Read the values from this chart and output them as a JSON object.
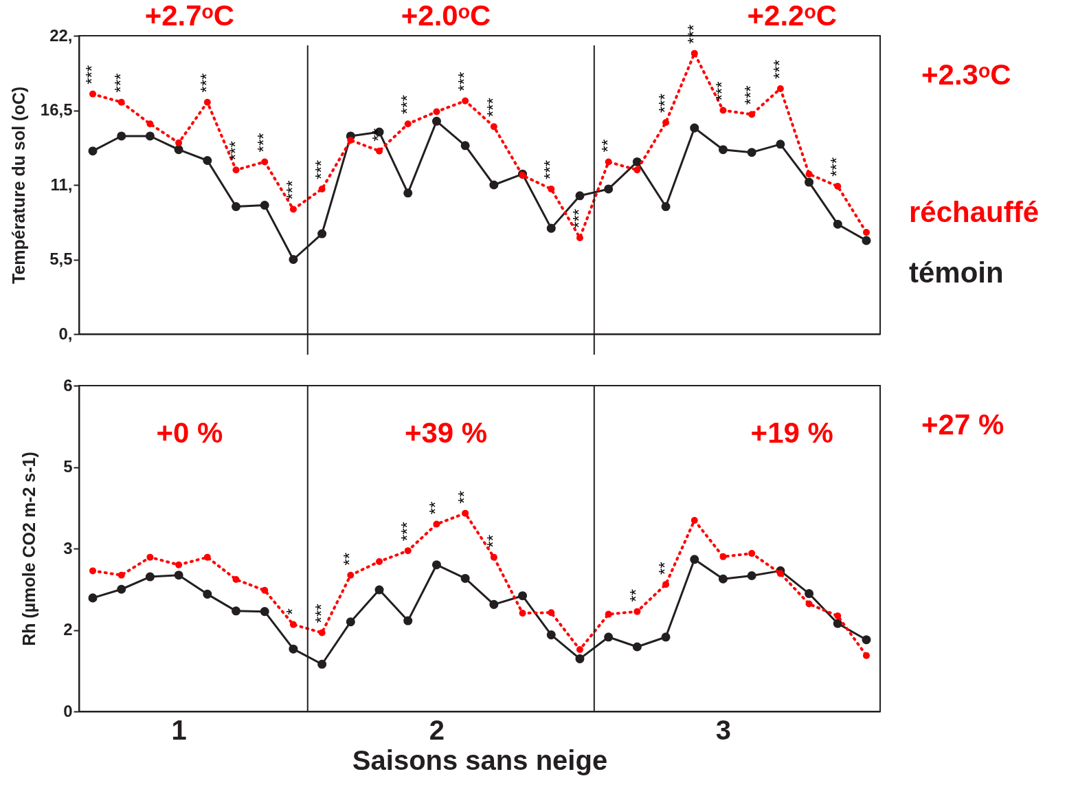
{
  "chart_data": [
    {
      "type": "line",
      "ylabel": "Température du sol (oC)",
      "categories": [
        null,
        null,
        null,
        null,
        null,
        null,
        null,
        null,
        null,
        null,
        null,
        null,
        null,
        null,
        null,
        null,
        null,
        null,
        null,
        null,
        null,
        null,
        null,
        null,
        null,
        null,
        null,
        null
      ],
      "ylim": [
        0,
        22
      ],
      "yticks": [
        {
          "value": 0,
          "label": "0,"
        },
        {
          "value": 5.5,
          "label": "5,5"
        },
        {
          "value": 11,
          "label": "11,"
        },
        {
          "value": 16.5,
          "label": "16,5"
        },
        {
          "value": 22,
          "label": "22,"
        }
      ],
      "tick_labels": "y",
      "legend": "right",
      "marker": "circle",
      "series": [
        {
          "name": "réchauffé",
          "color": "#ff0000",
          "line_style": "dotted",
          "values": [
            17.7,
            17.1,
            15.5,
            14.1,
            17.1,
            12.1,
            12.7,
            9.2,
            10.7,
            14.3,
            13.5,
            15.5,
            16.4,
            17.2,
            15.3,
            11.7,
            10.7,
            7.1,
            12.7,
            12.1,
            15.6,
            20.7,
            16.5,
            16.2,
            18.1,
            11.8,
            10.9,
            7.5
          ],
          "value_labels": [
            "***",
            "***",
            null,
            null,
            "***",
            "***",
            "***",
            "***",
            "***",
            null,
            "**",
            "***",
            null,
            "***",
            "***",
            null,
            "***",
            "***",
            "**",
            null,
            "***",
            "***",
            "***",
            "***",
            "***",
            null,
            "***",
            null
          ]
        },
        {
          "name": "témoin",
          "color": "#231f20",
          "line_style": "solid",
          "values": [
            13.5,
            14.6,
            14.6,
            13.6,
            12.8,
            9.4,
            9.5,
            5.5,
            7.4,
            14.6,
            14.9,
            10.4,
            15.7,
            13.9,
            11.0,
            11.8,
            7.8,
            10.2,
            10.7,
            12.7,
            9.4,
            15.2,
            13.6,
            13.4,
            14.0,
            11.2,
            8.1,
            6.9
          ]
        }
      ],
      "annotations": [
        "+2.7ᵒC",
        "+2.0ᵒC",
        "+2.2ᵒC",
        "+2.3ᵒC"
      ]
    },
    {
      "type": "line",
      "xlabel": "Saisons sans neige",
      "ylabel": "Rh (µmole CO2 m-2 s-1)",
      "categories": [
        null,
        null,
        null,
        "1",
        null,
        null,
        null,
        null,
        null,
        null,
        null,
        null,
        "2",
        null,
        null,
        null,
        null,
        null,
        null,
        null,
        null,
        null,
        "3",
        null,
        null,
        null,
        null,
        null
      ],
      "ylim": [
        0,
        6
      ],
      "yticks": [
        0,
        {
          "value": 1.5,
          "label": "2"
        },
        3,
        {
          "value": 4.5,
          "label": "5"
        },
        6
      ],
      "marker": "circle",
      "series": [
        {
          "color": "#ff0000",
          "line_style": "dotted",
          "values": [
            2.59,
            2.51,
            2.84,
            2.7,
            2.84,
            2.43,
            2.23,
            1.6,
            1.45,
            2.51,
            2.76,
            2.96,
            3.45,
            3.65,
            2.84,
            1.81,
            1.82,
            1.14,
            1.79,
            1.84,
            2.34,
            3.52,
            2.85,
            2.91,
            2.54,
            1.98,
            1.76,
            1.03
          ],
          "value_labels": [
            null,
            null,
            null,
            null,
            null,
            null,
            null,
            "*",
            "***",
            "**",
            null,
            "***",
            "**",
            "**",
            "**",
            null,
            null,
            null,
            null,
            "**",
            "**",
            null,
            null,
            null,
            null,
            null,
            null,
            null
          ]
        },
        {
          "color": "#231f20",
          "line_style": "solid",
          "values": [
            2.09,
            2.25,
            2.48,
            2.51,
            2.16,
            1.85,
            1.84,
            1.15,
            0.87,
            1.65,
            2.24,
            1.67,
            2.7,
            2.45,
            1.97,
            2.13,
            1.41,
            0.97,
            1.37,
            1.19,
            1.37,
            2.8,
            2.44,
            2.5,
            2.59,
            2.17,
            1.62,
            1.32
          ]
        }
      ],
      "annotations": [
        "+0 %",
        "+39 %",
        "+19 %",
        "+27 %"
      ]
    }
  ]
}
